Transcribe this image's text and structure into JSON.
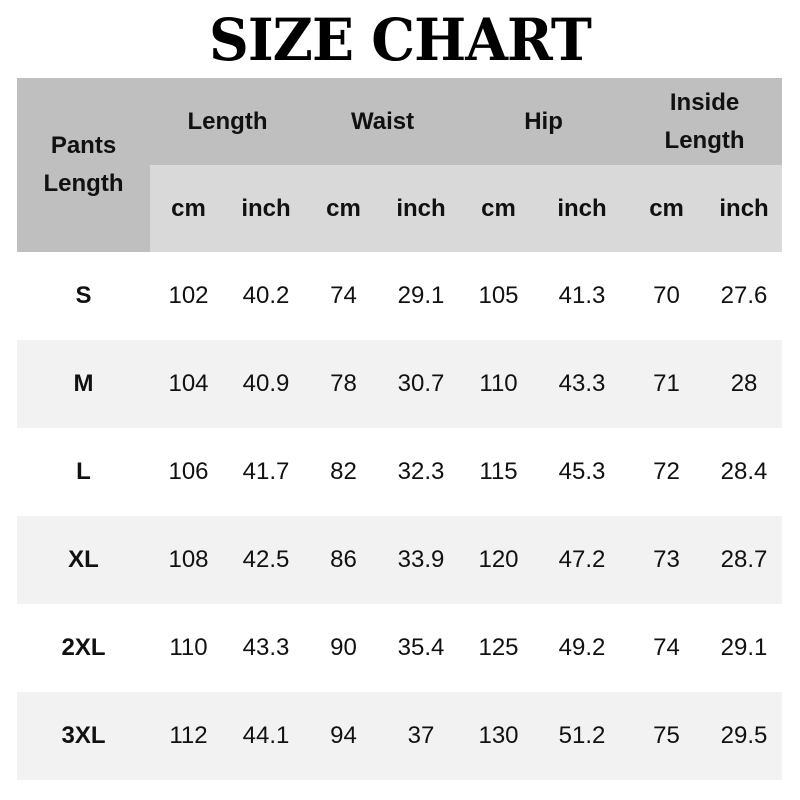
{
  "title": "SIZE CHART",
  "header": {
    "corner": [
      "Pants",
      "Length"
    ],
    "groups": [
      "Length",
      "Waist",
      "Hip",
      [
        "Inside",
        "Length"
      ]
    ],
    "units": [
      "cm",
      "inch",
      "cm",
      "inch",
      "cm",
      "inch",
      "cm",
      "inch"
    ]
  },
  "colors": {
    "header": "#bfbfbf",
    "subheader": "#d9d9d9",
    "alt_row": "#f2f2f2"
  },
  "rows": [
    {
      "size": "S",
      "values": [
        "102",
        "40.2",
        "74",
        "29.1",
        "105",
        "41.3",
        "70",
        "27.6"
      ]
    },
    {
      "size": "M",
      "values": [
        "104",
        "40.9",
        "78",
        "30.7",
        "110",
        "43.3",
        "71",
        "28"
      ]
    },
    {
      "size": "L",
      "values": [
        "106",
        "41.7",
        "82",
        "32.3",
        "115",
        "45.3",
        "72",
        "28.4"
      ]
    },
    {
      "size": "XL",
      "values": [
        "108",
        "42.5",
        "86",
        "33.9",
        "120",
        "47.2",
        "73",
        "28.7"
      ]
    },
    {
      "size": "2XL",
      "values": [
        "110",
        "43.3",
        "90",
        "35.4",
        "125",
        "49.2",
        "74",
        "29.1"
      ]
    },
    {
      "size": "3XL",
      "values": [
        "112",
        "44.1",
        "94",
        "37",
        "130",
        "51.2",
        "75",
        "29.5"
      ]
    }
  ]
}
